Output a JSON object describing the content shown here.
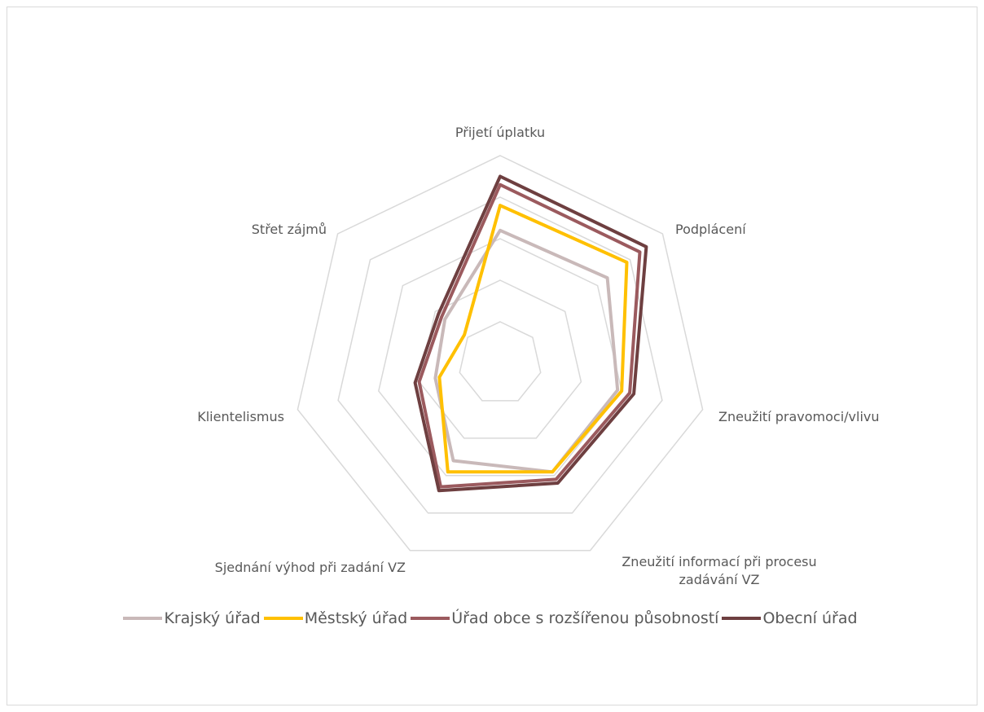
{
  "chart_data": {
    "type": "radar",
    "categories": [
      "Přijetí úplatku",
      "Podplácení",
      "Zneužití pravomoci/vlivu",
      "Zneužití informací při procesu zadávání VZ",
      "Sjednání výhod při zadání VZ",
      "Klientelismus",
      "Střet zájmů"
    ],
    "rlim": [
      0,
      5
    ],
    "rticks": [
      1,
      2,
      3,
      4,
      5
    ],
    "grid": true,
    "legend": "bottom",
    "series": [
      {
        "name": "Krajský úřad",
        "color": "#c9b9b9",
        "values": [
          3.2,
          3.3,
          2.9,
          2.9,
          2.6,
          1.6,
          1.7
        ]
      },
      {
        "name": "Městský úřad",
        "color": "#ffc000",
        "values": [
          3.8,
          3.9,
          3.0,
          2.9,
          2.9,
          1.5,
          1.1
        ]
      },
      {
        "name": "Úřad obce s rozšířenou působností",
        "color": "#9b5a5e",
        "values": [
          4.3,
          4.3,
          3.2,
          3.1,
          3.3,
          2.0,
          1.8
        ]
      },
      {
        "name": "Obecní úřad",
        "color": "#6e3f40",
        "values": [
          4.5,
          4.5,
          3.3,
          3.2,
          3.4,
          2.1,
          1.9
        ]
      }
    ]
  }
}
